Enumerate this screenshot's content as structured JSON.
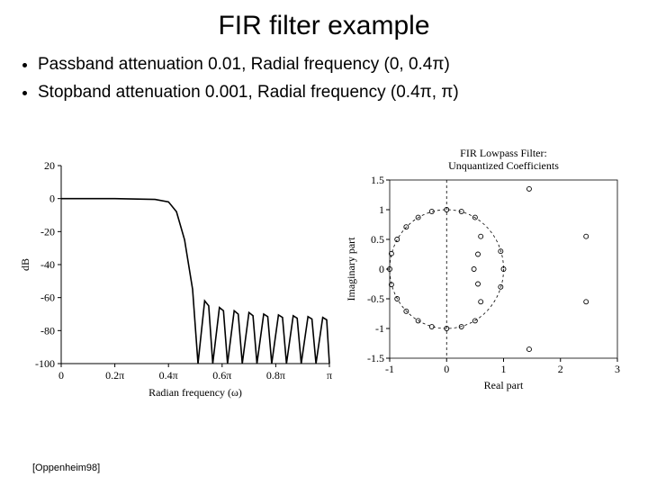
{
  "title": "FIR filter example",
  "bullets": [
    "Passband attenuation 0.01, Radial frequency (0, 0.4π)",
    "Stopband attenuation 0.001, Radial frequency (0.4π, π)"
  ],
  "footer": "[Oppenheim98]",
  "left_chart": {
    "type": "line",
    "title": "",
    "xlabel": "Radian frequency (ω)",
    "ylabel": "dB",
    "xlim": [
      0,
      1
    ],
    "ylim": [
      -100,
      20
    ],
    "xtick_vals": [
      0,
      0.2,
      0.4,
      0.6,
      0.8,
      1.0
    ],
    "xtick_labels": [
      "0",
      "0.2π",
      "0.4π",
      "0.6π",
      "0.8π",
      "π"
    ],
    "ytick_vals": [
      -100,
      -80,
      -60,
      -40,
      -20,
      0,
      20
    ],
    "ytick_labels": [
      "-100",
      "-80",
      "-60",
      "-40",
      "-20",
      "0",
      "20"
    ],
    "curve": [
      [
        0.0,
        0
      ],
      [
        0.2,
        0
      ],
      [
        0.35,
        -0.5
      ],
      [
        0.4,
        -2
      ],
      [
        0.43,
        -8
      ],
      [
        0.46,
        -25
      ],
      [
        0.49,
        -55
      ],
      [
        0.51,
        -100
      ],
      [
        0.535,
        -62
      ],
      [
        0.55,
        -65
      ],
      [
        0.565,
        -100
      ],
      [
        0.59,
        -66
      ],
      [
        0.605,
        -68
      ],
      [
        0.62,
        -100
      ],
      [
        0.645,
        -68
      ],
      [
        0.66,
        -70
      ],
      [
        0.675,
        -100
      ],
      [
        0.7,
        -69
      ],
      [
        0.715,
        -71
      ],
      [
        0.73,
        -100
      ],
      [
        0.755,
        -70
      ],
      [
        0.77,
        -71.5
      ],
      [
        0.785,
        -100
      ],
      [
        0.81,
        -70.5
      ],
      [
        0.825,
        -72
      ],
      [
        0.84,
        -100
      ],
      [
        0.865,
        -71
      ],
      [
        0.88,
        -72.5
      ],
      [
        0.895,
        -100
      ],
      [
        0.92,
        -71.5
      ],
      [
        0.935,
        -73
      ],
      [
        0.95,
        -100
      ],
      [
        0.975,
        -72
      ],
      [
        0.99,
        -73.5
      ],
      [
        1.0,
        -100
      ]
    ],
    "line_color": "#000000",
    "line_width": 1.6,
    "background_color": "#ffffff",
    "label_fontsize": 12
  },
  "right_chart": {
    "type": "scatter",
    "title": "FIR Lowpass Filter:\nUnquantized Coefficients",
    "xlabel": "Real part",
    "ylabel": "Imaginary part",
    "xlim": [
      -1,
      3
    ],
    "ylim": [
      -1.5,
      1.5
    ],
    "xtick_vals": [
      -1,
      0,
      1,
      2,
      3
    ],
    "xtick_labels": [
      "-1",
      "0",
      "1",
      "2",
      "3"
    ],
    "ytick_vals": [
      -1.5,
      -1,
      -0.5,
      0,
      0.5,
      1,
      1.5
    ],
    "ytick_labels": [
      "-1.5",
      "-1",
      "-0.5",
      "0",
      "0.5",
      "1",
      "1.5"
    ],
    "unit_circle_dashed": true,
    "vertical_dashed_x": 0,
    "points": [
      [
        -1.0,
        0.0
      ],
      [
        -0.97,
        0.26
      ],
      [
        -0.97,
        -0.26
      ],
      [
        -0.87,
        0.5
      ],
      [
        -0.87,
        -0.5
      ],
      [
        -0.71,
        0.71
      ],
      [
        -0.71,
        -0.71
      ],
      [
        -0.5,
        0.87
      ],
      [
        -0.5,
        -0.87
      ],
      [
        -0.26,
        0.97
      ],
      [
        -0.26,
        -0.97
      ],
      [
        0.0,
        1.0
      ],
      [
        0.0,
        -1.0
      ],
      [
        0.26,
        0.97
      ],
      [
        0.26,
        -0.97
      ],
      [
        0.5,
        0.87
      ],
      [
        0.5,
        -0.87
      ],
      [
        0.6,
        0.55
      ],
      [
        0.6,
        -0.55
      ],
      [
        0.55,
        0.25
      ],
      [
        0.55,
        -0.25
      ],
      [
        0.48,
        0.0
      ],
      [
        0.95,
        0.3
      ],
      [
        0.95,
        -0.3
      ],
      [
        1.0,
        0.0
      ],
      [
        1.45,
        1.35
      ],
      [
        1.45,
        -1.35
      ],
      [
        2.45,
        0.55
      ],
      [
        2.45,
        -0.55
      ]
    ],
    "marker_radius": 2.5,
    "marker_color": "#000000",
    "background_color": "#ffffff",
    "title_fontsize": 12,
    "label_fontsize": 12
  }
}
